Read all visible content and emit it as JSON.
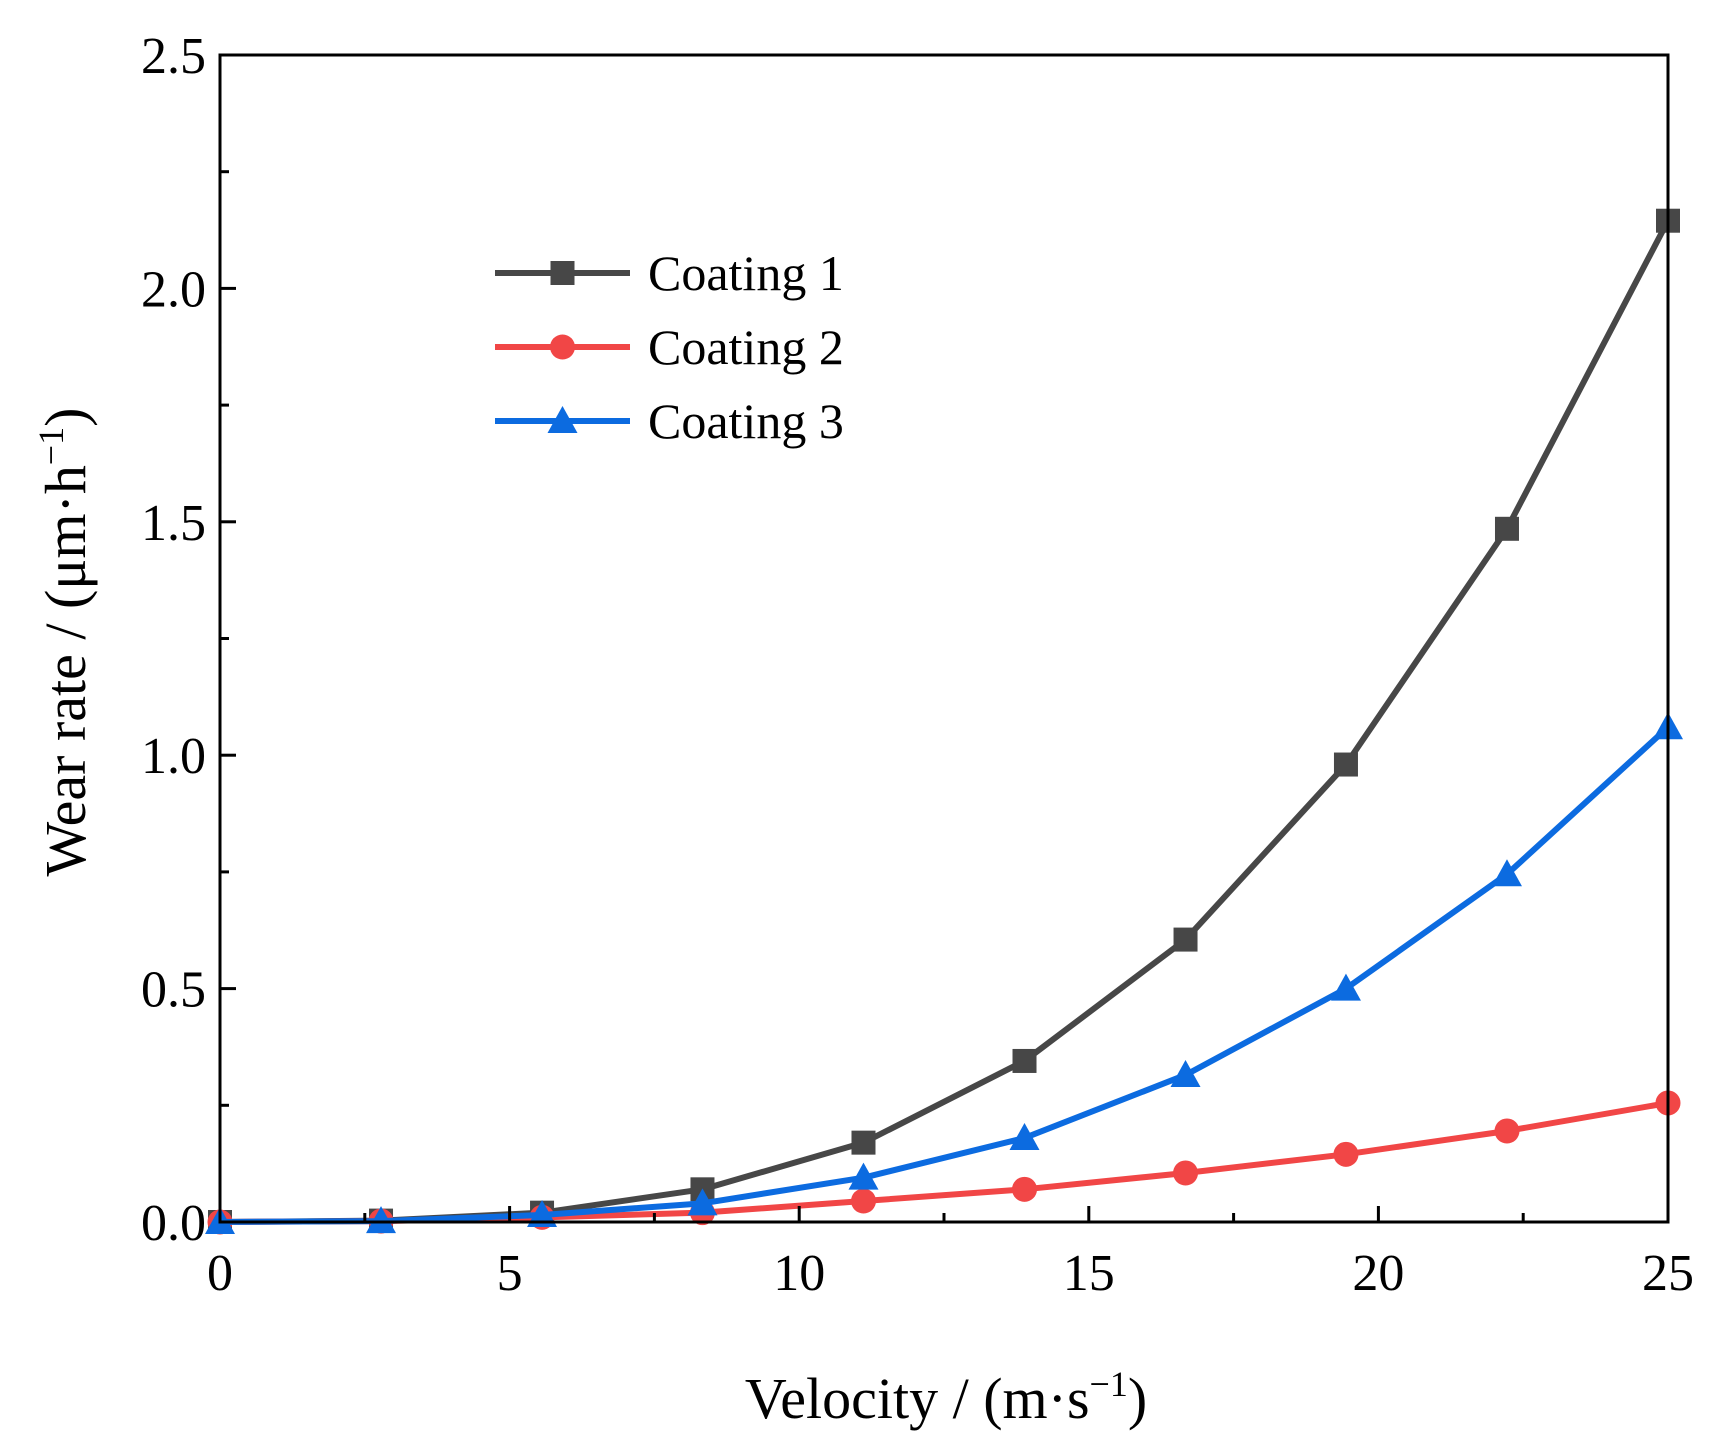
{
  "chart_data": {
    "type": "line",
    "title": "",
    "xlabel": "Velocity / (m·s",
    "xlabel_sup": "−1",
    "xlabel_end": ")",
    "ylabel": "Wear rate / (μm·h",
    "ylabel_sup": "−1",
    "ylabel_end": ")",
    "xlim": [
      0,
      25
    ],
    "ylim": [
      0,
      2.5
    ],
    "x_ticks": [
      0,
      5,
      10,
      15,
      20,
      25
    ],
    "x_tick_labels": [
      "0",
      "5",
      "10",
      "15",
      "20",
      "25"
    ],
    "y_ticks": [
      0,
      0.5,
      1.0,
      1.5,
      2.0,
      2.5
    ],
    "y_tick_labels": [
      "0.0",
      "0.5",
      "1.0",
      "1.5",
      "2.0",
      "2.5"
    ],
    "grid": false,
    "legend_position": "upper-left",
    "x": [
      0,
      2.78,
      5.56,
      8.33,
      11.11,
      13.89,
      16.67,
      19.44,
      22.22,
      25
    ],
    "series": [
      {
        "name": "Coating 1",
        "color": "#474747",
        "marker": "square",
        "values": [
          0,
          0.003,
          0.02,
          0.07,
          0.17,
          0.345,
          0.605,
          0.98,
          1.485,
          2.145
        ]
      },
      {
        "name": "Coating 2",
        "color": "#f14646",
        "marker": "circle",
        "values": [
          0,
          0.002,
          0.01,
          0.02,
          0.045,
          0.07,
          0.105,
          0.145,
          0.195,
          0.255
        ]
      },
      {
        "name": "Coating 3",
        "color": "#0c6be0",
        "marker": "triangle",
        "values": [
          0,
          0.002,
          0.015,
          0.04,
          0.095,
          0.18,
          0.315,
          0.5,
          0.745,
          1.06
        ]
      }
    ]
  }
}
